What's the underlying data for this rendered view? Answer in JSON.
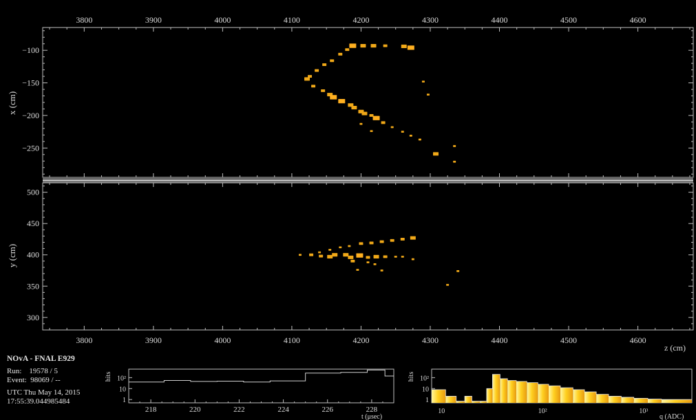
{
  "experiment": "NOvA - FNAL E929",
  "run_label": "Run:",
  "run_value": "19578 / 5",
  "event_label": "Event:",
  "event_value": "98069 / --",
  "utc_date": "UTC Thu May 14, 2015",
  "utc_time": "17:55:39.044985484",
  "colors": {
    "hit": "#f0a818",
    "hit_light": "#ffd840",
    "frame": "#bfbfbf",
    "divider": "#b0b0b0"
  },
  "chart_data": [
    {
      "type": "scatter",
      "name": "xz-view",
      "xlabel": "",
      "ylabel": "x (cm)",
      "xlim": [
        3740,
        4680
      ],
      "ylim": [
        -295,
        -65
      ],
      "xticks": [
        3800,
        3900,
        4000,
        4100,
        4200,
        4300,
        4400,
        4500,
        4600
      ],
      "yticks": [
        -100,
        -150,
        -200,
        -250
      ],
      "points": [
        {
          "x": 4188,
          "y": -93,
          "q": 4
        },
        {
          "x": 4203,
          "y": -93,
          "q": 3
        },
        {
          "x": 4218,
          "y": -93,
          "q": 3
        },
        {
          "x": 4235,
          "y": -93,
          "q": 2
        },
        {
          "x": 4262,
          "y": -94,
          "q": 3
        },
        {
          "x": 4272,
          "y": -96,
          "q": 4
        },
        {
          "x": 4180,
          "y": -99,
          "q": 2
        },
        {
          "x": 4170,
          "y": -106,
          "q": 2
        },
        {
          "x": 4158,
          "y": -116,
          "q": 2
        },
        {
          "x": 4147,
          "y": -122,
          "q": 2
        },
        {
          "x": 4136,
          "y": -131,
          "q": 2
        },
        {
          "x": 4126,
          "y": -140,
          "q": 2
        },
        {
          "x": 4122,
          "y": -144,
          "q": 3
        },
        {
          "x": 4131,
          "y": -155,
          "q": 2
        },
        {
          "x": 4145,
          "y": -162,
          "q": 2
        },
        {
          "x": 4155,
          "y": -168,
          "q": 3
        },
        {
          "x": 4160,
          "y": -172,
          "q": 4
        },
        {
          "x": 4172,
          "y": -178,
          "q": 4
        },
        {
          "x": 4185,
          "y": -184,
          "q": 3
        },
        {
          "x": 4190,
          "y": -188,
          "q": 3
        },
        {
          "x": 4200,
          "y": -194,
          "q": 3
        },
        {
          "x": 4205,
          "y": -197,
          "q": 3
        },
        {
          "x": 4215,
          "y": -200,
          "q": 2
        },
        {
          "x": 4222,
          "y": -204,
          "q": 4
        },
        {
          "x": 4232,
          "y": -211,
          "q": 2
        },
        {
          "x": 4245,
          "y": -218,
          "q": 1
        },
        {
          "x": 4260,
          "y": -225,
          "q": 1
        },
        {
          "x": 4272,
          "y": -231,
          "q": 1
        },
        {
          "x": 4285,
          "y": -237,
          "q": 1
        },
        {
          "x": 4308,
          "y": -259,
          "q": 3
        },
        {
          "x": 4335,
          "y": -247,
          "q": 1
        },
        {
          "x": 4335,
          "y": -271,
          "q": 1
        },
        {
          "x": 4297,
          "y": -168,
          "q": 1
        },
        {
          "x": 4290,
          "y": -148,
          "q": 1
        },
        {
          "x": 4200,
          "y": -213,
          "q": 1
        },
        {
          "x": 4215,
          "y": -224,
          "q": 1
        }
      ]
    },
    {
      "type": "scatter",
      "name": "yz-view",
      "xlabel": "z (cm)",
      "ylabel": "y (cm)",
      "xlim": [
        3740,
        4680
      ],
      "ylim": [
        280,
        515
      ],
      "xticks": [
        3800,
        3900,
        4000,
        4100,
        4200,
        4300,
        4400,
        4500,
        4600
      ],
      "yticks": [
        300,
        350,
        400,
        450,
        500
      ],
      "points": [
        {
          "x": 4112,
          "y": 400,
          "q": 1
        },
        {
          "x": 4128,
          "y": 400,
          "q": 2
        },
        {
          "x": 4140,
          "y": 404,
          "q": 1
        },
        {
          "x": 4155,
          "y": 408,
          "q": 1
        },
        {
          "x": 4170,
          "y": 412,
          "q": 1
        },
        {
          "x": 4183,
          "y": 414,
          "q": 1
        },
        {
          "x": 4200,
          "y": 418,
          "q": 2
        },
        {
          "x": 4215,
          "y": 419,
          "q": 2
        },
        {
          "x": 4230,
          "y": 421,
          "q": 2
        },
        {
          "x": 4245,
          "y": 423,
          "q": 2
        },
        {
          "x": 4260,
          "y": 425,
          "q": 2
        },
        {
          "x": 4275,
          "y": 427,
          "q": 3
        },
        {
          "x": 4142,
          "y": 398,
          "q": 2
        },
        {
          "x": 4155,
          "y": 397,
          "q": 3
        },
        {
          "x": 4162,
          "y": 400,
          "q": 3
        },
        {
          "x": 4178,
          "y": 400,
          "q": 3
        },
        {
          "x": 4185,
          "y": 396,
          "q": 3
        },
        {
          "x": 4198,
          "y": 399,
          "q": 4
        },
        {
          "x": 4210,
          "y": 396,
          "q": 2
        },
        {
          "x": 4222,
          "y": 397,
          "q": 3
        },
        {
          "x": 4235,
          "y": 397,
          "q": 2
        },
        {
          "x": 4250,
          "y": 397,
          "q": 1
        },
        {
          "x": 4260,
          "y": 397,
          "q": 1
        },
        {
          "x": 4275,
          "y": 393,
          "q": 1
        },
        {
          "x": 4188,
          "y": 390,
          "q": 2
        },
        {
          "x": 4210,
          "y": 388,
          "q": 1
        },
        {
          "x": 4220,
          "y": 385,
          "q": 1
        },
        {
          "x": 4195,
          "y": 376,
          "q": 1
        },
        {
          "x": 4230,
          "y": 375,
          "q": 1
        },
        {
          "x": 4340,
          "y": 374,
          "q": 1
        },
        {
          "x": 4325,
          "y": 352,
          "q": 1
        }
      ]
    },
    {
      "type": "bar",
      "name": "time-histogram",
      "xlabel": "t (μsec)",
      "ylabel": "hits",
      "log_y": true,
      "xlim": [
        217,
        229
      ],
      "xticks": [
        218,
        220,
        222,
        224,
        226,
        228
      ],
      "yticks": [
        "1",
        "10",
        "10²"
      ],
      "bins": [
        {
          "x0": 217,
          "x1": 218.6,
          "v": 40
        },
        {
          "x0": 218.6,
          "x1": 219.8,
          "v": 55
        },
        {
          "x0": 219.8,
          "x1": 221,
          "v": 45
        },
        {
          "x0": 221,
          "x1": 222.2,
          "v": 48
        },
        {
          "x0": 222.2,
          "x1": 223.4,
          "v": 40
        },
        {
          "x0": 223.4,
          "x1": 225,
          "v": 50
        },
        {
          "x0": 225,
          "x1": 226.6,
          "v": 260
        },
        {
          "x0": 226.6,
          "x1": 227.8,
          "v": 300
        },
        {
          "x0": 227.8,
          "x1": 228.6,
          "v": 500
        },
        {
          "x0": 228.6,
          "x1": 229,
          "v": 140
        }
      ]
    },
    {
      "type": "bar",
      "name": "charge-histogram",
      "xlabel": "q (ADC)",
      "ylabel": "hits",
      "log_x": true,
      "log_y": true,
      "xlim": [
        8,
        3000
      ],
      "xticks": [
        "10",
        "10²",
        "10³"
      ],
      "yticks": [
        "1",
        "10",
        "10²"
      ],
      "bins": [
        {
          "x0": 8,
          "x1": 11,
          "v": 8
        },
        {
          "x0": 11,
          "x1": 14,
          "v": 2
        },
        {
          "x0": 14,
          "x1": 17,
          "v": 0.7
        },
        {
          "x0": 17,
          "x1": 20,
          "v": 2
        },
        {
          "x0": 20,
          "x1": 24,
          "v": 0.7
        },
        {
          "x0": 24,
          "x1": 28,
          "v": 0.7
        },
        {
          "x0": 28,
          "x1": 32,
          "v": 10
        },
        {
          "x0": 32,
          "x1": 38,
          "v": 200
        },
        {
          "x0": 38,
          "x1": 45,
          "v": 80
        },
        {
          "x0": 45,
          "x1": 55,
          "v": 55
        },
        {
          "x0": 55,
          "x1": 70,
          "v": 45
        },
        {
          "x0": 70,
          "x1": 90,
          "v": 35
        },
        {
          "x0": 90,
          "x1": 115,
          "v": 25
        },
        {
          "x0": 115,
          "x1": 150,
          "v": 18
        },
        {
          "x0": 150,
          "x1": 200,
          "v": 12
        },
        {
          "x0": 200,
          "x1": 260,
          "v": 8
        },
        {
          "x0": 260,
          "x1": 340,
          "v": 5
        },
        {
          "x0": 340,
          "x1": 450,
          "v": 3
        },
        {
          "x0": 450,
          "x1": 600,
          "v": 2
        },
        {
          "x0": 600,
          "x1": 800,
          "v": 1.6
        },
        {
          "x0": 800,
          "x1": 1100,
          "v": 1.3
        },
        {
          "x0": 1100,
          "x1": 1500,
          "v": 1.1
        },
        {
          "x0": 1500,
          "x1": 3000,
          "v": 1
        }
      ]
    }
  ]
}
